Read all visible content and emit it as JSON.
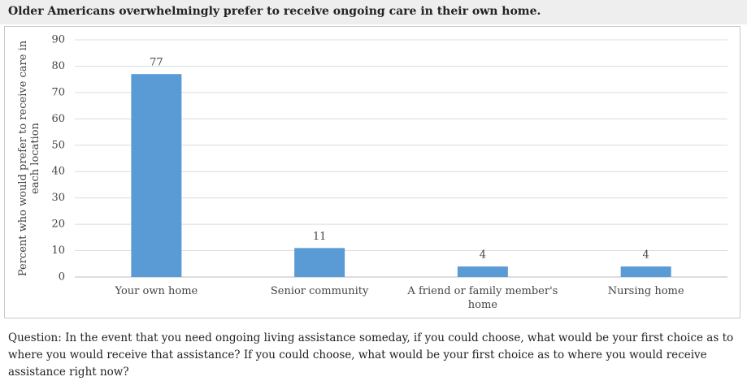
{
  "chart_data": {
    "type": "bar",
    "title": "Older Americans overwhelmingly prefer to receive ongoing care in their own home.",
    "ylabel": "Percent who would prefer to receive care in each location",
    "categories": [
      "Your own home",
      "Senior community",
      "A friend or family member's home",
      "Nursing home"
    ],
    "values": [
      77,
      11,
      4,
      4
    ],
    "color": "#5b9bd5",
    "ylim": [
      0,
      90
    ],
    "yticks": [
      0,
      10,
      20,
      30,
      40,
      50,
      60,
      70,
      80,
      90
    ],
    "grid": true,
    "note": "Question: In the event that you need ongoing living assistance someday, if you could choose, what would be your first choice as to where you would receive that assistance? If you could choose, what would be your first choice as to where you would receive assistance right now?"
  }
}
